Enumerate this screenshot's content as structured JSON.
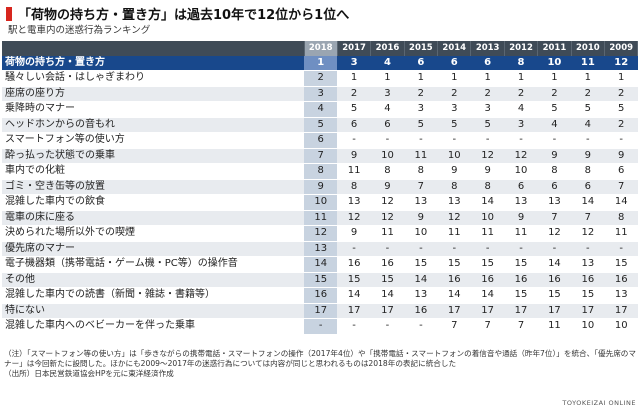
{
  "header": {
    "title": "「荷物の持ち方・置き方」は過去10年で12位から1位へ",
    "subtitle": "駅と電車内の迷惑行為ランキング"
  },
  "chart_data": {
    "type": "table",
    "years": [
      "2018",
      "2017",
      "2016",
      "2015",
      "2014",
      "2013",
      "2012",
      "2011",
      "2010",
      "2009"
    ],
    "highlight_year": "2018",
    "rows": [
      {
        "name": "荷物の持ち方・置き方",
        "ranks": [
          "1",
          "3",
          "4",
          "6",
          "6",
          "6",
          "8",
          "10",
          "11",
          "12"
        ]
      },
      {
        "name": "騒々しい会話・はしゃぎまわり",
        "ranks": [
          "2",
          "1",
          "1",
          "1",
          "1",
          "1",
          "1",
          "1",
          "1",
          "1"
        ]
      },
      {
        "name": "座席の座り方",
        "ranks": [
          "3",
          "2",
          "3",
          "2",
          "2",
          "2",
          "2",
          "2",
          "2",
          "2"
        ]
      },
      {
        "name": "乗降時のマナー",
        "ranks": [
          "4",
          "5",
          "4",
          "3",
          "3",
          "3",
          "4",
          "5",
          "5",
          "5"
        ]
      },
      {
        "name": "ヘッドホンからの音もれ",
        "ranks": [
          "5",
          "6",
          "6",
          "5",
          "5",
          "5",
          "3",
          "4",
          "4",
          "2"
        ]
      },
      {
        "name": "スマートフォン等の使い方",
        "ranks": [
          "6",
          "-",
          "-",
          "-",
          "-",
          "-",
          "-",
          "-",
          "-",
          "-"
        ]
      },
      {
        "name": "酔っ払った状態での乗車",
        "ranks": [
          "7",
          "9",
          "10",
          "11",
          "10",
          "12",
          "12",
          "9",
          "9",
          "9"
        ]
      },
      {
        "name": "車内での化粧",
        "ranks": [
          "8",
          "11",
          "8",
          "8",
          "9",
          "9",
          "10",
          "8",
          "8",
          "6"
        ]
      },
      {
        "name": "ゴミ・空き缶等の放置",
        "ranks": [
          "9",
          "8",
          "9",
          "7",
          "8",
          "8",
          "6",
          "6",
          "6",
          "7"
        ]
      },
      {
        "name": "混雑した車内での飲食",
        "ranks": [
          "10",
          "13",
          "12",
          "13",
          "13",
          "14",
          "13",
          "13",
          "14",
          "14"
        ]
      },
      {
        "name": "電車の床に座る",
        "ranks": [
          "11",
          "12",
          "12",
          "9",
          "12",
          "10",
          "9",
          "7",
          "7",
          "8"
        ]
      },
      {
        "name": "決められた場所以外での喫煙",
        "ranks": [
          "12",
          "9",
          "11",
          "10",
          "11",
          "11",
          "11",
          "12",
          "12",
          "11"
        ]
      },
      {
        "name": "優先席のマナー",
        "ranks": [
          "13",
          "-",
          "-",
          "-",
          "-",
          "-",
          "-",
          "-",
          "-",
          "-"
        ]
      },
      {
        "name": "電子機器類（携帯電話・ゲーム機・PC等）の操作音",
        "ranks": [
          "14",
          "16",
          "16",
          "15",
          "15",
          "15",
          "15",
          "14",
          "13",
          "15"
        ]
      },
      {
        "name": "その他",
        "ranks": [
          "15",
          "15",
          "15",
          "14",
          "16",
          "16",
          "16",
          "16",
          "16",
          "16"
        ]
      },
      {
        "name": "混雑した車内での読書（新聞・雑誌・書籍等）",
        "ranks": [
          "16",
          "14",
          "14",
          "13",
          "14",
          "14",
          "15",
          "15",
          "15",
          "13"
        ]
      },
      {
        "name": "特にない",
        "ranks": [
          "17",
          "17",
          "17",
          "16",
          "17",
          "17",
          "17",
          "17",
          "17",
          "17"
        ]
      },
      {
        "name": "混雑した車内へのベビーカーを伴った乗車",
        "ranks": [
          "-",
          "-",
          "-",
          "-",
          "7",
          "7",
          "7",
          "11",
          "10",
          "10"
        ]
      }
    ]
  },
  "notes": {
    "note": "（注）「スマートフォン等の使い方」は「歩きながらの携帯電話・スマートフォンの操作（2017年4位）や「携帯電話・スマートフォンの着信音や通話（昨年7位）」を統合、「優先席のマナー」は今回新たに設問した。ほかにも2009～2017年の迷惑行為については内容が同じと思われるものは2018年の表記に統合した",
    "source": "（出所）日本民営鉄道協会HPを元に東洋経済作成"
  },
  "credit": "TOYOKEIZAI ONLINE",
  "colors": {
    "accent_red": "#d7261e",
    "header_dark": "#3f4b57",
    "first_row_blue": "#18488c",
    "highlight_col": "#c8d3e0"
  }
}
